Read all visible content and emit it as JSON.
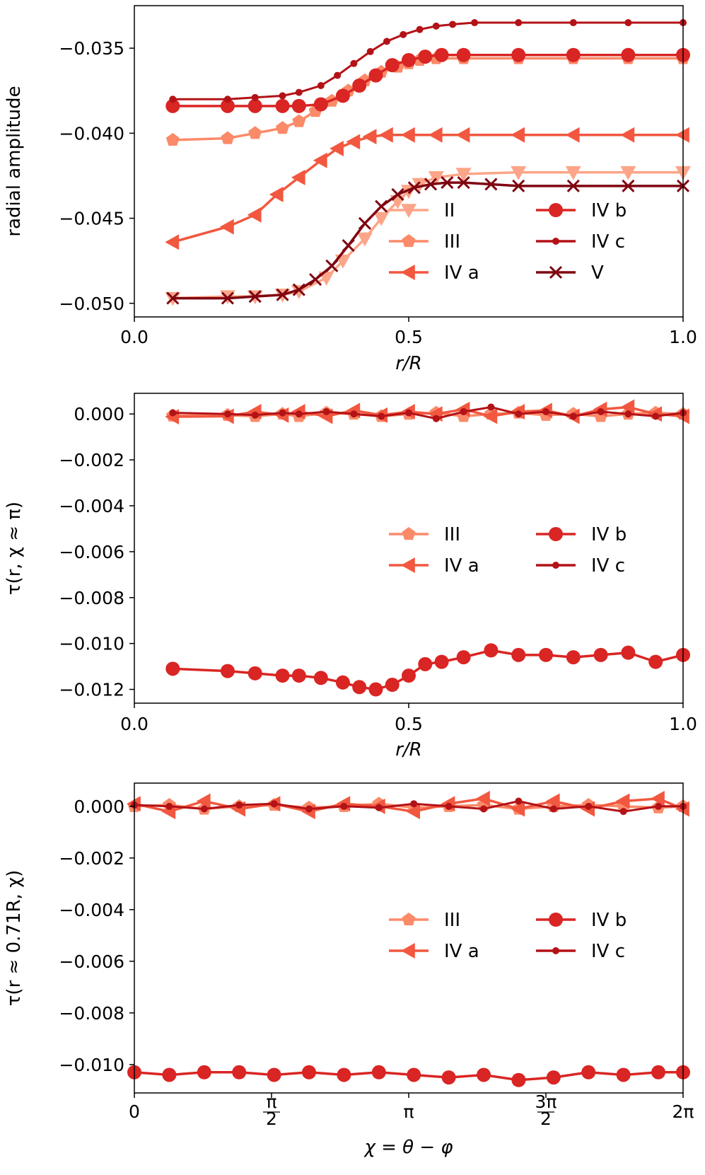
{
  "colors": {
    "II": "#fca588",
    "III": "#fb8a69",
    "IV a": "#f2573f",
    "IV b": "#d92523",
    "IV c": "#b31217",
    "V": "#7f0510"
  },
  "chart_data": [
    {
      "type": "line",
      "xlabel": "r/R",
      "ylabel": "radial amplitude",
      "xlim": [
        0,
        1
      ],
      "ylim": [
        -0.0508,
        -0.0325
      ],
      "xticks": [
        0.0,
        0.5,
        1.0
      ],
      "xtick_labels": [
        "0.0",
        "0.5",
        "1.0"
      ],
      "yticks": [
        -0.035,
        -0.04,
        -0.045,
        -0.05
      ],
      "ytick_labels": [
        "−0.035",
        "−0.040",
        "−0.045",
        "−0.050"
      ],
      "legend": {
        "placement": "lower-right",
        "columns": 2
      },
      "series": [
        {
          "name": "II",
          "marker": "triangle-down",
          "x": [
            0.07,
            0.17,
            0.22,
            0.27,
            0.3,
            0.35,
            0.38,
            0.42,
            0.45,
            0.48,
            0.5,
            0.52,
            0.55,
            0.6,
            0.7,
            0.8,
            0.9,
            1.0
          ],
          "values": [
            -0.0497,
            -0.0496,
            -0.0496,
            -0.0495,
            -0.0493,
            -0.0485,
            -0.0475,
            -0.0462,
            -0.045,
            -0.044,
            -0.0434,
            -0.043,
            -0.0426,
            -0.0424,
            -0.0423,
            -0.0423,
            -0.0423,
            -0.0423
          ]
        },
        {
          "name": "III",
          "marker": "pentagon",
          "x": [
            0.07,
            0.17,
            0.22,
            0.27,
            0.3,
            0.33,
            0.36,
            0.39,
            0.42,
            0.45,
            0.48,
            0.5,
            0.52,
            0.55,
            0.6,
            0.7,
            0.8,
            0.9,
            1.0
          ],
          "values": [
            -0.0404,
            -0.0403,
            -0.04,
            -0.0397,
            -0.0393,
            -0.0387,
            -0.0381,
            -0.0375,
            -0.0369,
            -0.0364,
            -0.0361,
            -0.0359,
            -0.0357,
            -0.0356,
            -0.0356,
            -0.0356,
            -0.0356,
            -0.0356,
            -0.0356
          ]
        },
        {
          "name": "IV a",
          "marker": "triangle-left",
          "x": [
            0.07,
            0.17,
            0.22,
            0.26,
            0.3,
            0.34,
            0.37,
            0.4,
            0.43,
            0.46,
            0.5,
            0.55,
            0.6,
            0.7,
            0.8,
            0.9,
            1.0
          ],
          "values": [
            -0.0464,
            -0.0455,
            -0.0448,
            -0.0436,
            -0.0426,
            -0.0416,
            -0.0409,
            -0.0405,
            -0.0402,
            -0.0401,
            -0.0401,
            -0.0401,
            -0.0401,
            -0.0401,
            -0.0401,
            -0.0401,
            -0.0401
          ]
        },
        {
          "name": "IV b",
          "marker": "circle",
          "x": [
            0.07,
            0.17,
            0.22,
            0.27,
            0.3,
            0.34,
            0.38,
            0.41,
            0.44,
            0.47,
            0.5,
            0.53,
            0.56,
            0.6,
            0.7,
            0.8,
            0.9,
            1.0
          ],
          "values": [
            -0.0384,
            -0.0384,
            -0.0384,
            -0.0384,
            -0.0384,
            -0.0383,
            -0.0378,
            -0.0372,
            -0.0366,
            -0.036,
            -0.0357,
            -0.0355,
            -0.0354,
            -0.0354,
            -0.0354,
            -0.0354,
            -0.0354,
            -0.0354
          ]
        },
        {
          "name": "IV c",
          "marker": "small-circle",
          "x": [
            0.07,
            0.17,
            0.22,
            0.27,
            0.3,
            0.34,
            0.37,
            0.4,
            0.43,
            0.46,
            0.49,
            0.52,
            0.55,
            0.58,
            0.62,
            0.7,
            0.8,
            0.9,
            1.0
          ],
          "values": [
            -0.038,
            -0.038,
            -0.0379,
            -0.0378,
            -0.0376,
            -0.0372,
            -0.0366,
            -0.0359,
            -0.0352,
            -0.0346,
            -0.0342,
            -0.0339,
            -0.0337,
            -0.0336,
            -0.0335,
            -0.0335,
            -0.0335,
            -0.0335,
            -0.0335
          ]
        },
        {
          "name": "V",
          "marker": "x",
          "x": [
            0.07,
            0.17,
            0.22,
            0.27,
            0.3,
            0.33,
            0.36,
            0.39,
            0.42,
            0.45,
            0.48,
            0.51,
            0.54,
            0.57,
            0.6,
            0.65,
            0.7,
            0.8,
            0.9,
            1.0
          ],
          "values": [
            -0.0497,
            -0.0497,
            -0.0496,
            -0.0495,
            -0.0492,
            -0.0486,
            -0.0478,
            -0.0466,
            -0.0453,
            -0.0443,
            -0.0436,
            -0.0432,
            -0.043,
            -0.0429,
            -0.0429,
            -0.043,
            -0.0431,
            -0.0431,
            -0.0431,
            -0.0431
          ]
        }
      ]
    },
    {
      "type": "line",
      "xlabel": "r/R",
      "ylabel": "τ(r, χ ≈ π)",
      "xlim": [
        0,
        1
      ],
      "ylim": [
        -0.0126,
        0.0009
      ],
      "xticks": [
        0.0,
        0.5,
        1.0
      ],
      "xtick_labels": [
        "0.0",
        "0.5",
        "1.0"
      ],
      "yticks": [
        0.0,
        -0.002,
        -0.004,
        -0.006,
        -0.008,
        -0.01,
        -0.012
      ],
      "ytick_labels": [
        "0.000",
        "−0.002",
        "−0.004",
        "−0.006",
        "−0.008",
        "−0.010",
        "−0.012"
      ],
      "legend": {
        "placement": "center-right",
        "columns": 2
      },
      "series": [
        {
          "name": "III",
          "marker": "pentagon",
          "x": [
            0.07,
            0.17,
            0.22,
            0.27,
            0.3,
            0.35,
            0.4,
            0.45,
            0.5,
            0.55,
            0.6,
            0.65,
            0.7,
            0.75,
            0.8,
            0.85,
            0.9,
            0.95,
            1.0
          ],
          "values": [
            -8e-05,
            -5e-05,
            -0.0001,
            0.0,
            -0.0001,
            5e-05,
            0.0,
            -0.0001,
            0.0,
            5e-05,
            -0.0001,
            0.0,
            5e-05,
            -5e-05,
            0.0,
            -0.0001,
            0.0,
            5e-05,
            0.0
          ]
        },
        {
          "name": "IV a",
          "marker": "triangle-left",
          "x": [
            0.07,
            0.17,
            0.22,
            0.27,
            0.3,
            0.35,
            0.4,
            0.45,
            0.5,
            0.55,
            0.6,
            0.65,
            0.7,
            0.75,
            0.8,
            0.85,
            0.9,
            0.95,
            1.0
          ],
          "values": [
            -0.00012,
            -0.0001,
            0.0001,
            -5e-05,
            0.0001,
            -0.0001,
            0.00015,
            -5e-05,
            0.0001,
            0.0,
            0.0002,
            -0.0001,
            0.0001,
            0.00015,
            -0.0001,
            0.0002,
            0.0003,
            0.0,
            -0.0001
          ]
        },
        {
          "name": "IV b",
          "marker": "circle",
          "x": [
            0.07,
            0.17,
            0.22,
            0.27,
            0.3,
            0.34,
            0.38,
            0.41,
            0.44,
            0.47,
            0.5,
            0.53,
            0.56,
            0.6,
            0.65,
            0.7,
            0.75,
            0.8,
            0.85,
            0.9,
            0.95,
            1.0
          ],
          "values": [
            -0.0111,
            -0.0112,
            -0.0113,
            -0.0114,
            -0.0114,
            -0.0115,
            -0.0117,
            -0.0119,
            -0.012,
            -0.0118,
            -0.0114,
            -0.0109,
            -0.0108,
            -0.0106,
            -0.0103,
            -0.0105,
            -0.0105,
            -0.0106,
            -0.0105,
            -0.0104,
            -0.0108,
            -0.0105
          ]
        },
        {
          "name": "IV c",
          "marker": "small-circle",
          "x": [
            0.07,
            0.17,
            0.22,
            0.27,
            0.3,
            0.35,
            0.4,
            0.45,
            0.5,
            0.55,
            0.6,
            0.65,
            0.7,
            0.75,
            0.8,
            0.85,
            0.9,
            0.95,
            1.0
          ],
          "values": [
            5e-05,
            0.0,
            -5e-05,
            5e-05,
            0.0,
            0.0001,
            0.0,
            -0.0001,
            5e-05,
            -0.0002,
            0.0001,
            0.0003,
            0.0,
            0.0001,
            -0.0001,
            0.0001,
            0.0,
            -0.0001,
            5e-05
          ]
        }
      ]
    },
    {
      "type": "line",
      "xlabel": "χ = θ − φ",
      "ylabel": "τ(r ≈ 0.71R, χ)",
      "xlim": [
        0,
        6.2832
      ],
      "ylim": [
        -0.0111,
        0.0009
      ],
      "xticks": [
        0,
        1.5708,
        3.1416,
        4.7124,
        6.2832
      ],
      "xtick_labels": [
        "0",
        "π/2",
        "π",
        "3π/2",
        "2π"
      ],
      "yticks": [
        0.0,
        -0.002,
        -0.004,
        -0.006,
        -0.008,
        -0.01
      ],
      "ytick_labels": [
        "0.000",
        "−0.002",
        "−0.004",
        "−0.006",
        "−0.008",
        "−0.010"
      ],
      "legend": {
        "placement": "upper-right",
        "columns": 2
      },
      "series": [
        {
          "name": "III",
          "marker": "pentagon",
          "x": [
            0.0,
            0.4,
            0.8,
            1.2,
            1.6,
            2.0,
            2.4,
            2.8,
            3.2,
            3.6,
            4.0,
            4.4,
            4.8,
            5.2,
            5.6,
            6.0,
            6.2832
          ],
          "values": [
            0.0,
            5e-05,
            -0.0001,
            0.0,
            5e-05,
            -5e-05,
            0.0,
            0.0001,
            -5e-05,
            0.0,
            5e-05,
            -0.0001,
            0.0,
            5e-05,
            0.0,
            -5e-05,
            0.0
          ]
        },
        {
          "name": "IV a",
          "marker": "triangle-left",
          "x": [
            0.0,
            0.4,
            0.8,
            1.2,
            1.6,
            2.0,
            2.4,
            2.8,
            3.2,
            3.6,
            4.0,
            4.4,
            4.8,
            5.2,
            5.6,
            6.0,
            6.2832
          ],
          "values": [
            0.0001,
            -0.0002,
            0.0002,
            -0.0001,
            0.0001,
            -0.0002,
            0.0001,
            0.0,
            -0.0002,
            0.0001,
            0.0003,
            -0.0001,
            0.0002,
            -0.0001,
            0.0002,
            0.0003,
            -0.0001
          ]
        },
        {
          "name": "IV b",
          "marker": "circle",
          "x": [
            0.0,
            0.4,
            0.8,
            1.2,
            1.6,
            2.0,
            2.4,
            2.8,
            3.2,
            3.6,
            4.0,
            4.4,
            4.8,
            5.2,
            5.6,
            6.0,
            6.2832
          ],
          "values": [
            -0.0103,
            -0.0104,
            -0.0103,
            -0.0103,
            -0.0104,
            -0.0103,
            -0.0104,
            -0.0103,
            -0.0104,
            -0.0105,
            -0.0104,
            -0.0106,
            -0.0105,
            -0.0103,
            -0.0104,
            -0.0103,
            -0.0103
          ]
        },
        {
          "name": "IV c",
          "marker": "small-circle",
          "x": [
            0.0,
            0.4,
            0.8,
            1.2,
            1.6,
            2.0,
            2.4,
            2.8,
            3.2,
            3.6,
            4.0,
            4.4,
            4.8,
            5.2,
            5.6,
            6.0,
            6.2832
          ],
          "values": [
            5e-05,
            0.0,
            -0.0001,
            5e-05,
            0.0001,
            -0.0001,
            0.0,
            -5e-05,
            0.0001,
            0.0,
            -0.0001,
            0.0002,
            -0.0001,
            0.0,
            -0.0002,
            0.0,
            0.0
          ]
        }
      ]
    }
  ]
}
